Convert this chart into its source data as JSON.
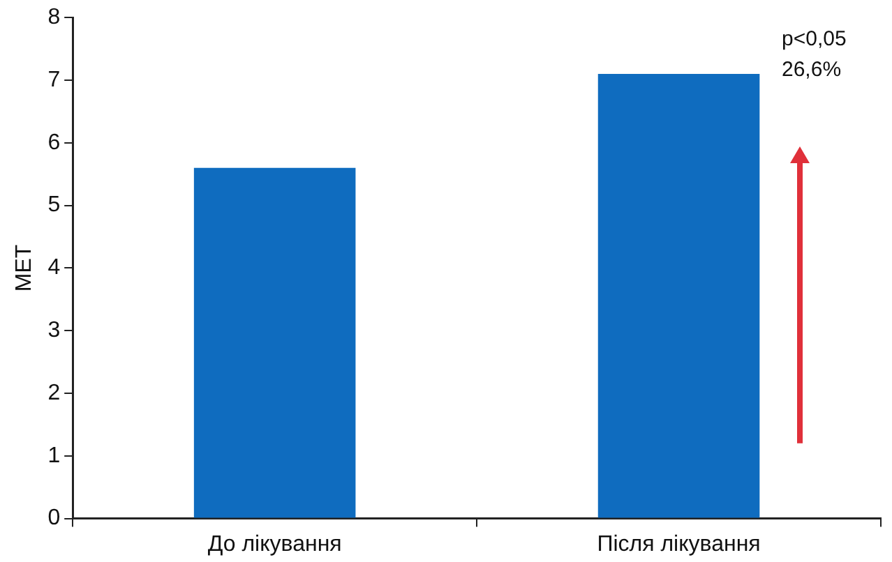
{
  "chart_data": {
    "type": "bar",
    "ylabel": "МЕТ",
    "categories": [
      "До лікування",
      "Після лікування"
    ],
    "values": [
      5.6,
      7.1
    ],
    "color": "#0f6cbf",
    "ylim": [
      0,
      8
    ],
    "yticks": [
      0,
      1,
      2,
      3,
      4,
      5,
      6,
      7,
      8
    ],
    "grid": false,
    "legend": false,
    "annotations": [
      "p<0,05",
      "26,6%"
    ]
  }
}
